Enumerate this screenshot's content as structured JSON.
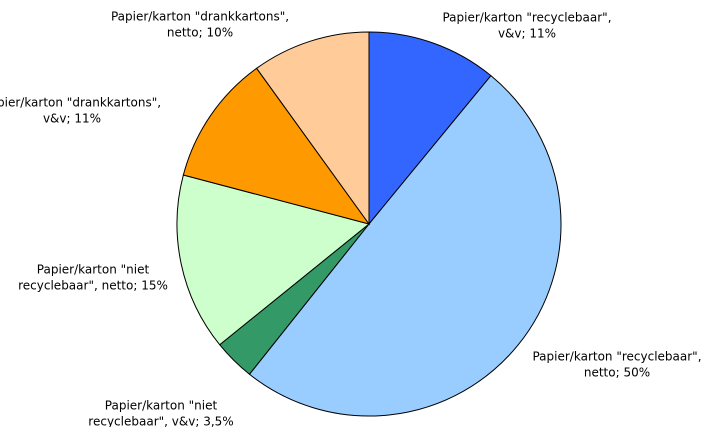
{
  "chart_data": {
    "type": "pie",
    "labels": [
      [
        "Papier/karton \"recyclebaar\",",
        "v&v; 11%"
      ],
      [
        "Papier/karton \"recyclebaar\",",
        "netto; 50%"
      ],
      [
        "Papier/karton \"niet",
        "recyclebaar\", v&v; 3,5%"
      ],
      [
        "Papier/karton \"niet",
        "recyclebaar\", netto; 15%"
      ],
      [
        "Papier/karton \"drankkartons\",",
        "v&v; 11%"
      ],
      [
        "Papier/karton \"drankkartons\",",
        "netto; 10%"
      ]
    ],
    "values": [
      11,
      50,
      3.5,
      15,
      11,
      10
    ],
    "colors": [
      "#3366ff",
      "#99ccff",
      "#339966",
      "#ccffcc",
      "#ff9900",
      "#ffcc99"
    ]
  }
}
